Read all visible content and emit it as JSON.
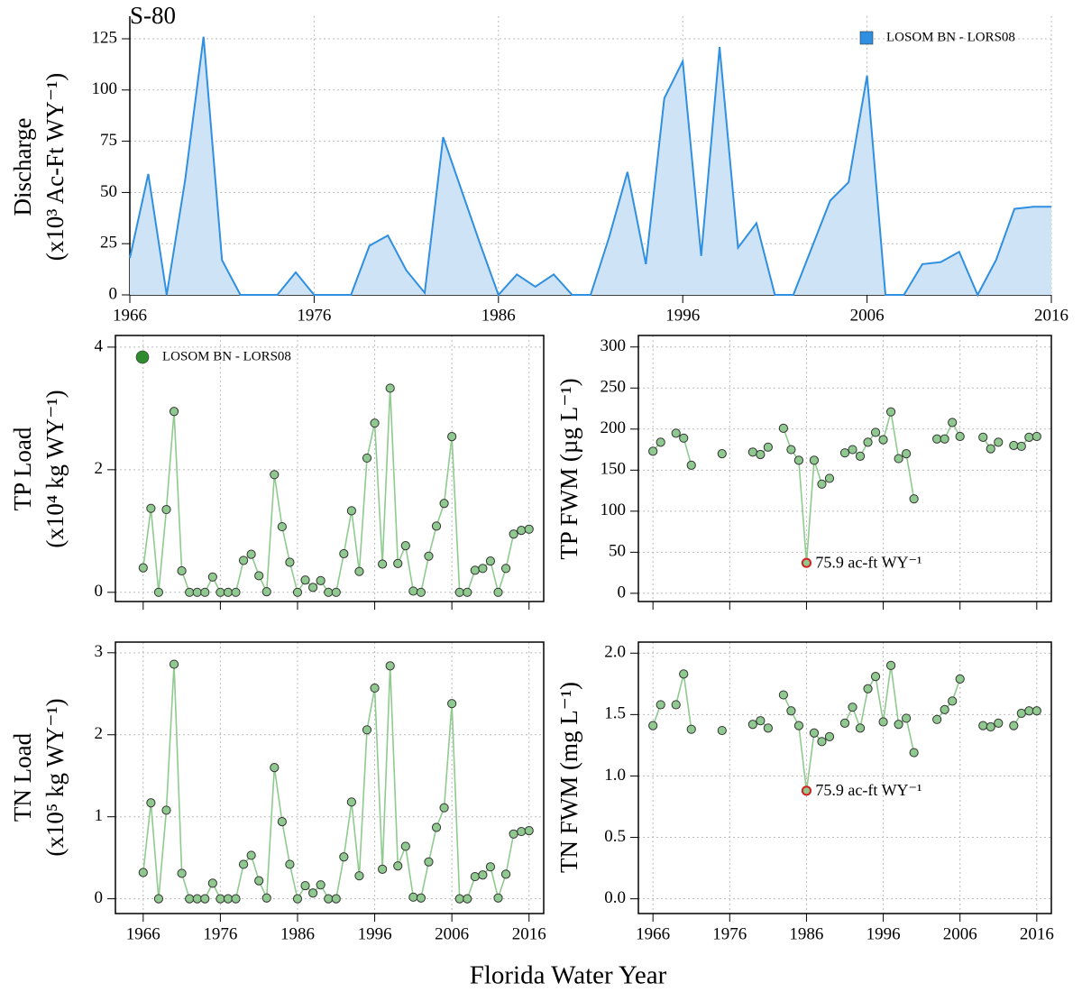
{
  "xlabel": "Florida Water Year",
  "chart_data": [
    {
      "type": "area",
      "title": "S-80",
      "ylabel": [
        "Discharge",
        "(x10³ Ac-Ft WY⁻¹)"
      ],
      "legend": "top-right",
      "series": [
        {
          "name": "LOSOM BN - LORS08",
          "color": "#2f8fe0",
          "fill": "#cfe3f7",
          "values": [
            18,
            59,
            0,
            56,
            126,
            17,
            0,
            0,
            0,
            11,
            0,
            0,
            0,
            24,
            29,
            12,
            1,
            77,
            51,
            25,
            0,
            10,
            4,
            10,
            0,
            0,
            28,
            60,
            15,
            96,
            114,
            19,
            121,
            23,
            35,
            0,
            0,
            23,
            46,
            55,
            107,
            0,
            0,
            15,
            16,
            21,
            0,
            17,
            42,
            43,
            43
          ]
        }
      ],
      "x": [
        1966,
        1967,
        1968,
        1969,
        1970,
        1971,
        1972,
        1973,
        1974,
        1975,
        1976,
        1977,
        1978,
        1979,
        1980,
        1981,
        1982,
        1983,
        1984,
        1985,
        1986,
        1987,
        1988,
        1989,
        1990,
        1991,
        1992,
        1993,
        1994,
        1995,
        1996,
        1997,
        1998,
        1999,
        2000,
        2001,
        2002,
        2003,
        2004,
        2005,
        2006,
        2007,
        2008,
        2009,
        2010,
        2011,
        2012,
        2013,
        2014,
        2015,
        2016
      ],
      "xlim": [
        1966,
        2016
      ],
      "xticks": [
        1966,
        1976,
        1986,
        1996,
        2006,
        2016
      ],
      "xticklabels": true,
      "ylim": [
        0,
        136
      ],
      "yticks": [
        0,
        25,
        50,
        75,
        100,
        125
      ],
      "grid": true,
      "box": false
    },
    {
      "type": "line",
      "ylabel": [
        "TP Load",
        "(x10⁴ kg WY⁻¹)"
      ],
      "legend": "top-left",
      "series": [
        {
          "name": "LOSOM BN - LORS08",
          "color": "#8fca8f",
          "marker_color": "#8fc98f",
          "legend_color": "#2e8b2e",
          "values": [
            0.4,
            1.37,
            0,
            1.35,
            2.95,
            0.35,
            0,
            0,
            0,
            0.25,
            0,
            0,
            0,
            0.52,
            0.62,
            0.27,
            0.01,
            1.92,
            1.07,
            0.49,
            0,
            0.2,
            0.08,
            0.19,
            0,
            0,
            0.63,
            1.33,
            0.34,
            2.19,
            2.76,
            0.46,
            3.33,
            0.47,
            0.76,
            0.02,
            0,
            0.59,
            1.08,
            1.45,
            2.54,
            0,
            0,
            0.36,
            0.39,
            0.51,
            0,
            0.39,
            0.95,
            1.01,
            1.03
          ]
        }
      ],
      "x": [
        1966,
        1967,
        1968,
        1969,
        1970,
        1971,
        1972,
        1973,
        1974,
        1975,
        1976,
        1977,
        1978,
        1979,
        1980,
        1981,
        1982,
        1983,
        1984,
        1985,
        1986,
        1987,
        1988,
        1989,
        1990,
        1991,
        1992,
        1993,
        1994,
        1995,
        1996,
        1997,
        1998,
        1999,
        2000,
        2001,
        2002,
        2003,
        2004,
        2005,
        2006,
        2007,
        2008,
        2009,
        2010,
        2011,
        2012,
        2013,
        2014,
        2015,
        2016
      ],
      "xlim": [
        1962.4,
        2017.9
      ],
      "xticks": [
        1966,
        1976,
        1986,
        1996,
        2006,
        2016
      ],
      "xticklabels": false,
      "ylim": [
        -0.15,
        4.19
      ],
      "yticks": [
        0,
        2,
        4
      ],
      "grid": true,
      "box": true
    },
    {
      "type": "line",
      "ylabel": [
        "TP FWM (µg L⁻¹)"
      ],
      "series": [
        {
          "name": "LOSOM BN - LORS08",
          "color": "#8fca8f",
          "marker_color": "#8fc98f",
          "values": [
            173,
            184,
            null,
            195,
            189,
            156,
            null,
            null,
            null,
            170,
            null,
            null,
            null,
            172,
            169,
            178,
            null,
            201,
            175,
            162,
            37,
            162,
            133,
            140,
            null,
            171,
            175,
            167,
            184,
            196,
            187,
            221,
            164,
            170,
            115,
            null,
            null,
            188,
            188,
            208,
            191,
            null,
            null,
            190,
            176,
            184,
            null,
            180,
            179,
            190,
            191
          ]
        }
      ],
      "x": [
        1966,
        1967,
        1968,
        1969,
        1970,
        1971,
        1972,
        1973,
        1974,
        1975,
        1976,
        1977,
        1978,
        1979,
        1980,
        1981,
        1982,
        1983,
        1984,
        1985,
        1986,
        1987,
        1988,
        1989,
        1990,
        1991,
        1992,
        1993,
        1994,
        1995,
        1996,
        1997,
        1998,
        1999,
        2000,
        2001,
        2002,
        2003,
        2004,
        2005,
        2006,
        2007,
        2008,
        2009,
        2010,
        2011,
        2012,
        2013,
        2014,
        2015,
        2016
      ],
      "annotation": {
        "text": "75.9 ac-ft WY⁻¹",
        "x": 1986,
        "color": "#d62020"
      },
      "xlim": [
        1964.1,
        2017.9
      ],
      "xticks": [
        1966,
        1976,
        1986,
        1996,
        2006,
        2016
      ],
      "xticklabels": false,
      "ylim": [
        -10,
        314
      ],
      "yticks": [
        0,
        50,
        100,
        150,
        200,
        250,
        300
      ],
      "grid": true,
      "box": true
    },
    {
      "type": "line",
      "ylabel": [
        "TN Load",
        "(x10⁵ kg WY⁻¹)"
      ],
      "series": [
        {
          "name": "LOSOM BN - LORS08",
          "color": "#8fca8f",
          "marker_color": "#8fc98f",
          "values": [
            0.32,
            1.17,
            0,
            1.08,
            2.86,
            0.31,
            0,
            0,
            0,
            0.19,
            0,
            0,
            0,
            0.42,
            0.53,
            0.22,
            0.01,
            1.6,
            0.94,
            0.42,
            0,
            0.16,
            0.07,
            0.17,
            0,
            0,
            0.51,
            1.18,
            0.28,
            2.06,
            2.57,
            0.36,
            2.84,
            0.4,
            0.64,
            0.02,
            0.01,
            0.45,
            0.87,
            1.11,
            2.38,
            0,
            0,
            0.27,
            0.29,
            0.39,
            0.01,
            0.3,
            0.79,
            0.82,
            0.83
          ]
        }
      ],
      "x": [
        1966,
        1967,
        1968,
        1969,
        1970,
        1971,
        1972,
        1973,
        1974,
        1975,
        1976,
        1977,
        1978,
        1979,
        1980,
        1981,
        1982,
        1983,
        1984,
        1985,
        1986,
        1987,
        1988,
        1989,
        1990,
        1991,
        1992,
        1993,
        1994,
        1995,
        1996,
        1997,
        1998,
        1999,
        2000,
        2001,
        2002,
        2003,
        2004,
        2005,
        2006,
        2007,
        2008,
        2009,
        2010,
        2011,
        2012,
        2013,
        2014,
        2015,
        2016
      ],
      "xlim": [
        1962.4,
        2017.9
      ],
      "xticks": [
        1966,
        1976,
        1986,
        1996,
        2006,
        2016
      ],
      "xticklabels": true,
      "ylim": [
        -0.18,
        3.13
      ],
      "yticks": [
        0,
        1,
        2,
        3
      ],
      "grid": true,
      "box": true
    },
    {
      "type": "line",
      "ylabel": [
        "TN FWM (mg L⁻¹)"
      ],
      "series": [
        {
          "name": "LOSOM BN - LORS08",
          "color": "#8fca8f",
          "marker_color": "#8fc98f",
          "values": [
            1.41,
            1.58,
            null,
            1.58,
            1.83,
            1.38,
            null,
            null,
            null,
            1.37,
            null,
            null,
            null,
            1.42,
            1.45,
            1.39,
            null,
            1.66,
            1.53,
            1.41,
            0.88,
            1.35,
            1.28,
            1.32,
            null,
            1.43,
            1.56,
            1.39,
            1.71,
            1.81,
            1.44,
            1.9,
            1.42,
            1.47,
            1.19,
            null,
            null,
            1.46,
            1.54,
            1.61,
            1.79,
            null,
            null,
            1.41,
            1.4,
            1.43,
            null,
            1.41,
            1.51,
            1.53,
            1.53
          ]
        }
      ],
      "x": [
        1966,
        1967,
        1968,
        1969,
        1970,
        1971,
        1972,
        1973,
        1974,
        1975,
        1976,
        1977,
        1978,
        1979,
        1980,
        1981,
        1982,
        1983,
        1984,
        1985,
        1986,
        1987,
        1988,
        1989,
        1990,
        1991,
        1992,
        1993,
        1994,
        1995,
        1996,
        1997,
        1998,
        1999,
        2000,
        2001,
        2002,
        2003,
        2004,
        2005,
        2006,
        2007,
        2008,
        2009,
        2010,
        2011,
        2012,
        2013,
        2014,
        2015,
        2016
      ],
      "annotation": {
        "text": "75.9 ac-ft WY⁻¹",
        "x": 1986,
        "color": "#d62020"
      },
      "xlim": [
        1964.1,
        2017.9
      ],
      "xticks": [
        1966,
        1976,
        1986,
        1996,
        2006,
        2016
      ],
      "xticklabels": true,
      "ylim": [
        -0.12,
        2.09
      ],
      "yticks": [
        {
          "value": 0,
          "label": "0.0"
        },
        0.5,
        {
          "value": 1,
          "label": "1.0"
        },
        1.5,
        {
          "value": 2,
          "label": "2.0"
        }
      ],
      "grid": true,
      "box": true
    }
  ]
}
